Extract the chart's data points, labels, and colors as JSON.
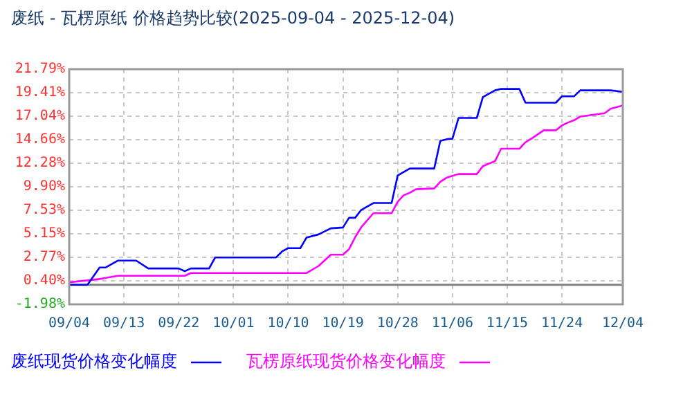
{
  "chart_data": {
    "type": "line",
    "title": "废纸 - 瓦楞原纸 价格趋势比较(2025-09-04 - 2025-12-04)",
    "x": [
      "2025-09-04",
      "2025-09-07",
      "2025-09-09",
      "2025-09-10",
      "2025-09-12",
      "2025-09-15",
      "2025-09-17",
      "2025-09-22",
      "2025-09-23",
      "2025-09-24",
      "2025-09-27",
      "2025-09-28",
      "2025-10-08",
      "2025-10-09",
      "2025-10-10",
      "2025-10-12",
      "2025-10-13",
      "2025-10-15",
      "2025-10-17",
      "2025-10-19",
      "2025-10-20",
      "2025-10-21",
      "2025-10-22",
      "2025-10-24",
      "2025-10-27",
      "2025-10-28",
      "2025-10-29",
      "2025-10-30",
      "2025-10-31",
      "2025-11-03",
      "2025-11-04",
      "2025-11-05",
      "2025-11-06",
      "2025-11-07",
      "2025-11-10",
      "2025-11-11",
      "2025-11-13",
      "2025-11-14",
      "2025-11-17",
      "2025-11-18",
      "2025-11-19",
      "2025-11-21",
      "2025-11-23",
      "2025-11-24",
      "2025-11-25",
      "2025-11-26",
      "2025-11-27",
      "2025-12-01",
      "2025-12-02",
      "2025-12-04"
    ],
    "series": [
      {
        "name": "废纸现货价格变化幅度",
        "color": "#0000ff",
        "values": [
          0,
          0,
          1.74,
          1.75,
          2.44,
          2.44,
          1.65,
          1.65,
          1.37,
          1.65,
          1.65,
          2.76,
          2.76,
          3.37,
          3.7,
          3.7,
          4.76,
          5.09,
          5.7,
          5.79,
          6.77,
          6.77,
          7.56,
          8.26,
          8.26,
          11.05,
          11.4,
          11.75,
          11.75,
          11.75,
          14.54,
          14.7,
          14.77,
          16.86,
          16.86,
          18.96,
          19.65,
          19.79,
          19.79,
          18.4,
          18.4,
          18.4,
          18.4,
          19.05,
          19.05,
          19.05,
          19.65,
          19.65,
          19.65,
          19.5
        ]
      },
      {
        "name": "瓦楞原纸现货价格变化幅度",
        "color": "#ff00ff",
        "values": [
          0.25,
          0.44,
          0.58,
          0.7,
          0.9,
          0.9,
          0.9,
          0.9,
          0.9,
          1.18,
          1.18,
          1.18,
          1.18,
          1.18,
          1.18,
          1.18,
          1.18,
          1.9,
          3.04,
          3.04,
          3.6,
          4.8,
          5.8,
          7.23,
          7.23,
          8.4,
          9.05,
          9.3,
          9.65,
          9.74,
          10.4,
          10.81,
          11.0,
          11.19,
          11.19,
          11.98,
          12.5,
          13.75,
          13.75,
          14.4,
          14.77,
          15.61,
          15.61,
          16.1,
          16.4,
          16.63,
          17.0,
          17.33,
          17.79,
          18.12
        ]
      }
    ],
    "xlim": [
      "2025-09-04",
      "2025-12-04"
    ],
    "xticks": [
      {
        "value": "2025-09-04",
        "label": "09/04"
      },
      {
        "value": "2025-09-13",
        "label": "09/13"
      },
      {
        "value": "2025-09-22",
        "label": "09/22"
      },
      {
        "value": "2025-10-01",
        "label": "10/01"
      },
      {
        "value": "2025-10-10",
        "label": "10/10"
      },
      {
        "value": "2025-10-19",
        "label": "10/19"
      },
      {
        "value": "2025-10-28",
        "label": "10/28"
      },
      {
        "value": "2025-11-06",
        "label": "11/06"
      },
      {
        "value": "2025-11-15",
        "label": "11/15"
      },
      {
        "value": "2025-11-24",
        "label": "11/24"
      },
      {
        "value": "2025-12-04",
        "label": "12/04"
      }
    ],
    "ylim": [
      -1.98,
      21.79
    ],
    "yticks": [
      {
        "value": -1.98,
        "label": "-1.98%"
      },
      {
        "value": 0.4,
        "label": "0.40%"
      },
      {
        "value": 2.77,
        "label": "2.77%"
      },
      {
        "value": 5.15,
        "label": "5.15%"
      },
      {
        "value": 7.53,
        "label": "7.53%"
      },
      {
        "value": 9.9,
        "label": "9.90%"
      },
      {
        "value": 12.28,
        "label": "12.28%"
      },
      {
        "value": 14.66,
        "label": "14.66%"
      },
      {
        "value": 17.04,
        "label": "17.04%"
      },
      {
        "value": 19.41,
        "label": "19.41%"
      },
      {
        "value": 21.79,
        "label": "21.79%"
      }
    ],
    "ref_lines": [
      {
        "axis": "y",
        "value": 0,
        "color": "#808080"
      }
    ],
    "grid": true,
    "legend": "bottom"
  }
}
